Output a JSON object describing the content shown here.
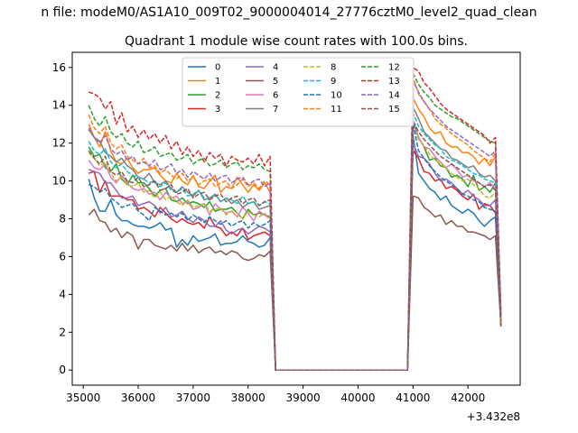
{
  "chart_data": {
    "type": "line",
    "suptitle": "n file: modeM0/AS1A10_009T02_9000004014_27776cztM0_level2_quad_clean",
    "title": "Quadrant 1 module wise count rates with 100.0s bins.",
    "xlabel": "",
    "ylabel": "",
    "x_offset_label": "+3.432e8",
    "xlim": [
      34800,
      42950
    ],
    "ylim": [
      -0.8,
      16.8
    ],
    "x_ticks": [
      35000,
      36000,
      37000,
      38000,
      39000,
      40000,
      41000,
      42000
    ],
    "x_tick_labels": [
      "35000",
      "36000",
      "37000",
      "38000",
      "39000",
      "40000",
      "41000",
      "42000"
    ],
    "y_ticks": [
      0,
      2,
      4,
      6,
      8,
      10,
      12,
      14,
      16
    ],
    "y_tick_labels": [
      "0",
      "2",
      "4",
      "6",
      "8",
      "10",
      "12",
      "14",
      "16"
    ],
    "grid": false,
    "legend_position": "top-center",
    "legend_columns": 4,
    "x_segments": {
      "first_start": 35100,
      "first_end": 38400,
      "gap_start": 38500,
      "gap_end": 40900,
      "second_start": 41000,
      "second_end": 42600,
      "step": 100
    },
    "series": [
      {
        "name": "0",
        "color": "#1f77b4",
        "dash": "solid",
        "seg1": [
          10.1,
          9.1,
          8.4,
          8.4,
          9.0,
          8.2,
          7.9,
          7.9,
          7.7,
          7.6,
          7.6,
          7.5,
          7.6,
          7.8,
          7.4,
          7.5,
          6.5,
          6.9,
          6.6,
          7.1,
          6.8,
          6.9,
          7.0,
          7.2,
          6.6,
          6.7,
          6.7,
          6.8,
          7.1,
          6.8,
          6.7,
          6.5,
          6.6,
          7.0
        ],
        "seg2": [
          12.4,
          10.4,
          10.0,
          9.6,
          9.4,
          9.0,
          9.2,
          8.7,
          8.5,
          8.3,
          8.5,
          8.3,
          7.9,
          7.6,
          7.9,
          8.1,
          2.4
        ]
      },
      {
        "name": "1",
        "color": "#ff7f0e",
        "dash": "solid",
        "seg1": [
          13.0,
          12.3,
          11.8,
          12.6,
          11.6,
          11.0,
          10.9,
          11.2,
          10.7,
          10.4,
          10.6,
          10.6,
          10.7,
          10.3,
          10.0,
          9.9,
          10.4,
          10.0,
          9.8,
          10.3,
          9.7,
          9.6,
          10.0,
          10.3,
          9.4,
          9.7,
          9.6,
          10.2,
          9.8,
          9.4,
          9.8,
          9.5,
          9.9,
          9.4
        ],
        "seg2": [
          14.4,
          13.8,
          13.4,
          12.8,
          12.5,
          12.6,
          12.0,
          11.8,
          11.8,
          11.5,
          11.5,
          11.3,
          10.9,
          11.2,
          10.8,
          11.3,
          2.5
        ]
      },
      {
        "name": "2",
        "color": "#2ca02c",
        "dash": "solid",
        "seg1": [
          11.8,
          11.3,
          11.4,
          10.7,
          10.5,
          10.9,
          10.1,
          9.8,
          10.3,
          9.9,
          9.9,
          9.6,
          9.2,
          9.5,
          9.6,
          9.0,
          8.9,
          9.1,
          8.8,
          8.9,
          8.8,
          8.6,
          8.9,
          8.4,
          8.5,
          8.5,
          8.6,
          8.3,
          8.0,
          8.5,
          8.2,
          8.3,
          8.2,
          8.1
        ],
        "seg2": [
          13.2,
          12.3,
          11.8,
          11.1,
          11.2,
          10.8,
          10.7,
          10.2,
          10.3,
          10.1,
          9.7,
          10.3,
          9.5,
          9.7,
          9.4,
          9.9,
          2.3
        ]
      },
      {
        "name": "3",
        "color": "#d62728",
        "dash": "solid",
        "seg1": [
          10.4,
          10.5,
          9.4,
          10.0,
          9.2,
          9.2,
          9.2,
          9.0,
          9.0,
          8.5,
          8.6,
          8.4,
          8.1,
          8.6,
          8.3,
          8.0,
          7.8,
          8.0,
          7.8,
          7.7,
          7.8,
          7.5,
          8.1,
          7.6,
          7.5,
          7.1,
          7.3,
          7.1,
          7.5,
          6.9,
          7.1,
          7.2,
          7.3,
          7.1
        ],
        "seg2": [
          11.6,
          11.2,
          10.5,
          10.4,
          10.0,
          10.1,
          9.6,
          9.7,
          9.5,
          9.2,
          9.0,
          9.3,
          8.5,
          8.8,
          8.7,
          8.3,
          2.3
        ]
      },
      {
        "name": "4",
        "color": "#9467bd",
        "dash": "solid",
        "seg1": [
          10.6,
          10.5,
          10.4,
          9.9,
          9.9,
          9.5,
          9.1,
          9.1,
          9.2,
          8.7,
          8.8,
          8.9,
          8.7,
          8.3,
          8.6,
          8.1,
          8.2,
          8.4,
          8.0,
          7.8,
          8.1,
          7.9,
          7.6,
          7.6,
          7.9,
          7.4,
          7.2,
          7.4,
          7.5,
          7.2,
          7.4,
          7.6,
          7.5,
          7.3
        ],
        "seg2": [
          12.0,
          11.3,
          11.2,
          10.9,
          10.4,
          10.0,
          10.1,
          9.9,
          9.6,
          9.3,
          9.5,
          9.2,
          9.0,
          8.7,
          8.7,
          9.0,
          2.4
        ]
      },
      {
        "name": "5",
        "color": "#8c564b",
        "dash": "solid",
        "seg1": [
          8.2,
          8.5,
          7.9,
          7.8,
          7.3,
          7.5,
          7.0,
          7.3,
          7.1,
          6.4,
          6.9,
          6.9,
          6.6,
          6.5,
          6.4,
          6.6,
          6.3,
          6.7,
          6.3,
          6.6,
          6.2,
          6.4,
          6.5,
          6.2,
          6.3,
          6.1,
          6.3,
          6.2,
          5.9,
          5.8,
          5.9,
          6.1,
          6.0,
          6.3
        ],
        "seg2": [
          9.2,
          9.1,
          8.6,
          8.4,
          8.1,
          8.2,
          7.7,
          7.9,
          7.6,
          7.6,
          7.3,
          7.3,
          7.2,
          7.1,
          6.9,
          7.1,
          2.3
        ]
      },
      {
        "name": "6",
        "color": "#e377c2",
        "dash": "solid",
        "seg1": [
          11.1,
          10.7,
          10.6,
          10.9,
          10.2,
          9.9,
          10.3,
          9.9,
          9.6,
          9.5,
          9.6,
          9.3,
          9.4,
          9.0,
          9.4,
          9.1,
          9.2,
          8.8,
          8.9,
          8.5,
          8.6,
          8.8,
          8.2,
          8.8,
          8.5,
          8.3,
          8.4,
          8.1,
          8.6,
          8.3,
          7.9,
          8.4,
          8.2,
          8.0
        ],
        "seg2": [
          13.0,
          12.3,
          11.8,
          11.7,
          11.3,
          11.0,
          10.7,
          10.9,
          10.6,
          10.2,
          10.3,
          10.0,
          9.9,
          9.7,
          9.9,
          9.6,
          2.5
        ]
      },
      {
        "name": "7",
        "color": "#7f7f7f",
        "dash": "solid",
        "seg1": [
          12.7,
          12.3,
          12.1,
          11.5,
          11.3,
          11.0,
          11.2,
          10.8,
          10.6,
          10.2,
          10.1,
          10.4,
          9.9,
          9.8,
          10.0,
          9.6,
          9.4,
          9.7,
          9.4,
          9.2,
          9.5,
          9.0,
          9.1,
          9.3,
          8.9,
          9.1,
          8.8,
          9.0,
          8.6,
          8.8,
          8.9,
          8.5,
          8.6,
          8.7
        ],
        "seg2": [
          13.9,
          13.3,
          12.6,
          12.3,
          12.0,
          11.7,
          11.6,
          11.2,
          11.1,
          10.9,
          10.7,
          10.8,
          10.4,
          10.2,
          10.3,
          10.0,
          2.5
        ]
      },
      {
        "name": "8",
        "color": "#bcbd22",
        "dash": "dash",
        "seg1": [
          11.5,
          11.2,
          10.8,
          11.0,
          10.4,
          10.0,
          10.2,
          9.8,
          9.7,
          9.9,
          9.4,
          9.5,
          9.1,
          9.4,
          9.0,
          9.2,
          8.9,
          8.7,
          9.0,
          8.6,
          8.7,
          8.8,
          8.4,
          8.5,
          8.6,
          8.2,
          8.4,
          8.3,
          8.0,
          8.4,
          8.2,
          8.1,
          8.3,
          8.0
        ],
        "seg2": [
          12.8,
          12.2,
          11.9,
          11.4,
          11.1,
          10.9,
          10.7,
          10.4,
          10.2,
          10.0,
          10.1,
          9.8,
          9.6,
          9.2,
          9.1,
          9.4,
          2.6
        ]
      },
      {
        "name": "9",
        "color": "#17becf",
        "dash": "dash",
        "seg1": [
          12.1,
          11.6,
          11.4,
          11.7,
          11.0,
          10.7,
          10.9,
          10.5,
          10.3,
          10.2,
          10.1,
          9.9,
          10.0,
          9.7,
          9.9,
          9.5,
          9.4,
          9.6,
          9.2,
          9.3,
          9.5,
          9.1,
          9.0,
          9.3,
          8.9,
          9.1,
          9.0,
          8.8,
          9.2,
          8.8,
          8.9,
          8.7,
          8.9,
          8.8
        ],
        "seg2": [
          13.6,
          12.9,
          12.5,
          12.2,
          11.9,
          11.7,
          11.3,
          11.1,
          11.0,
          10.8,
          10.6,
          10.4,
          10.3,
          10.1,
          10.0,
          9.9,
          2.7
        ]
      },
      {
        "name": "10",
        "color": "#1f77b4",
        "dash": "dash",
        "seg1": [
          9.8,
          9.7,
          9.4,
          9.6,
          9.1,
          8.9,
          8.6,
          8.7,
          8.8,
          8.4,
          8.2,
          7.9,
          8.6,
          8.4,
          8.2,
          8.3,
          8.1,
          8.3,
          7.9,
          8.2,
          8.0,
          7.8,
          8.1,
          7.9,
          7.7,
          7.9,
          7.6,
          7.8,
          7.9,
          7.5,
          7.8,
          7.6,
          7.7,
          7.9
        ],
        "seg2": [
          13.0,
          11.6,
          11.2,
          10.8,
          10.5,
          10.2,
          10.0,
          9.8,
          9.6,
          9.3,
          9.2,
          9.0,
          8.9,
          8.6,
          8.5,
          8.4,
          2.7
        ]
      },
      {
        "name": "11",
        "color": "#ff7f0e",
        "dash": "dash",
        "seg1": [
          13.5,
          12.8,
          12.5,
          12.9,
          12.0,
          11.7,
          11.9,
          11.3,
          11.1,
          10.9,
          11.2,
          10.7,
          10.8,
          10.4,
          10.6,
          10.3,
          10.1,
          10.4,
          10.0,
          10.2,
          9.8,
          10.0,
          10.1,
          9.7,
          9.9,
          10.0,
          9.6,
          9.8,
          10.1,
          9.7,
          9.9,
          9.6,
          10.0,
          9.8
        ],
        "seg2": [
          15.5,
          14.6,
          14.2,
          13.8,
          13.3,
          13.0,
          12.8,
          12.5,
          12.3,
          12.1,
          11.9,
          11.6,
          11.4,
          11.2,
          11.0,
          11.5,
          2.6
        ]
      },
      {
        "name": "12",
        "color": "#2ca02c",
        "dash": "dash",
        "seg1": [
          14.0,
          13.3,
          12.9,
          13.4,
          12.6,
          12.3,
          12.5,
          12.0,
          11.8,
          12.1,
          11.5,
          11.6,
          11.8,
          11.3,
          11.4,
          11.5,
          11.1,
          11.2,
          11.4,
          10.9,
          11.1,
          11.2,
          10.8,
          10.9,
          11.1,
          10.7,
          10.9,
          11.0,
          10.6,
          10.8,
          10.7,
          10.9,
          10.6,
          10.5
        ],
        "seg2": [
          15.7,
          15.1,
          14.7,
          14.4,
          14.0,
          13.8,
          13.6,
          13.4,
          13.3,
          13.1,
          12.9,
          12.7,
          12.5,
          12.3,
          12.1,
          12.0,
          2.8
        ]
      },
      {
        "name": "13",
        "color": "#d62728",
        "dash": "dash",
        "seg1": [
          14.7,
          14.6,
          14.4,
          13.8,
          14.2,
          13.0,
          13.6,
          12.6,
          12.9,
          12.3,
          12.7,
          12.2,
          12.5,
          12.0,
          12.4,
          11.7,
          12.1,
          11.4,
          11.8,
          11.3,
          11.6,
          11.0,
          11.5,
          11.2,
          11.4,
          10.8,
          11.3,
          11.1,
          11.0,
          11.2,
          10.9,
          11.4,
          10.8,
          11.3
        ],
        "seg2": [
          16.0,
          15.8,
          15.2,
          14.9,
          14.5,
          14.1,
          13.8,
          13.6,
          13.4,
          13.2,
          13.0,
          12.8,
          12.6,
          12.4,
          12.0,
          12.3,
          3.0
        ]
      },
      {
        "name": "14",
        "color": "#9467bd",
        "dash": "dash",
        "seg1": [
          12.8,
          12.3,
          12.0,
          12.4,
          11.7,
          11.4,
          11.6,
          11.1,
          11.3,
          10.9,
          11.0,
          10.8,
          11.1,
          10.6,
          10.7,
          10.9,
          10.4,
          10.6,
          10.2,
          10.5,
          10.3,
          10.1,
          10.4,
          10.0,
          10.2,
          10.3,
          9.9,
          10.1,
          10.2,
          9.8,
          10.0,
          10.1,
          9.7,
          9.9
        ],
        "seg2": [
          15.3,
          14.7,
          14.2,
          13.8,
          13.5,
          13.2,
          12.9,
          12.7,
          12.5,
          12.3,
          12.1,
          11.9,
          11.7,
          11.5,
          11.3,
          11.6,
          2.9
        ]
      },
      {
        "name": "15",
        "color": "#8c564b",
        "dash": "dash",
        "seg1": [
          11.6,
          11.2,
          10.9,
          11.3,
          10.5,
          10.3,
          10.5,
          10.0,
          9.9,
          10.2,
          9.7,
          9.8,
          10.0,
          9.5,
          9.6,
          9.8,
          9.3,
          9.4,
          9.6,
          9.1,
          9.3,
          9.4,
          9.0,
          9.2,
          9.3,
          8.9,
          9.1,
          9.2,
          8.8,
          9.0,
          9.1,
          8.7,
          8.9,
          9.0
        ],
        "seg2": [
          13.2,
          12.6,
          12.2,
          11.9,
          11.6,
          11.3,
          11.1,
          10.9,
          10.7,
          10.5,
          10.3,
          10.1,
          9.9,
          9.7,
          9.8,
          9.5,
          2.6
        ]
      }
    ]
  }
}
